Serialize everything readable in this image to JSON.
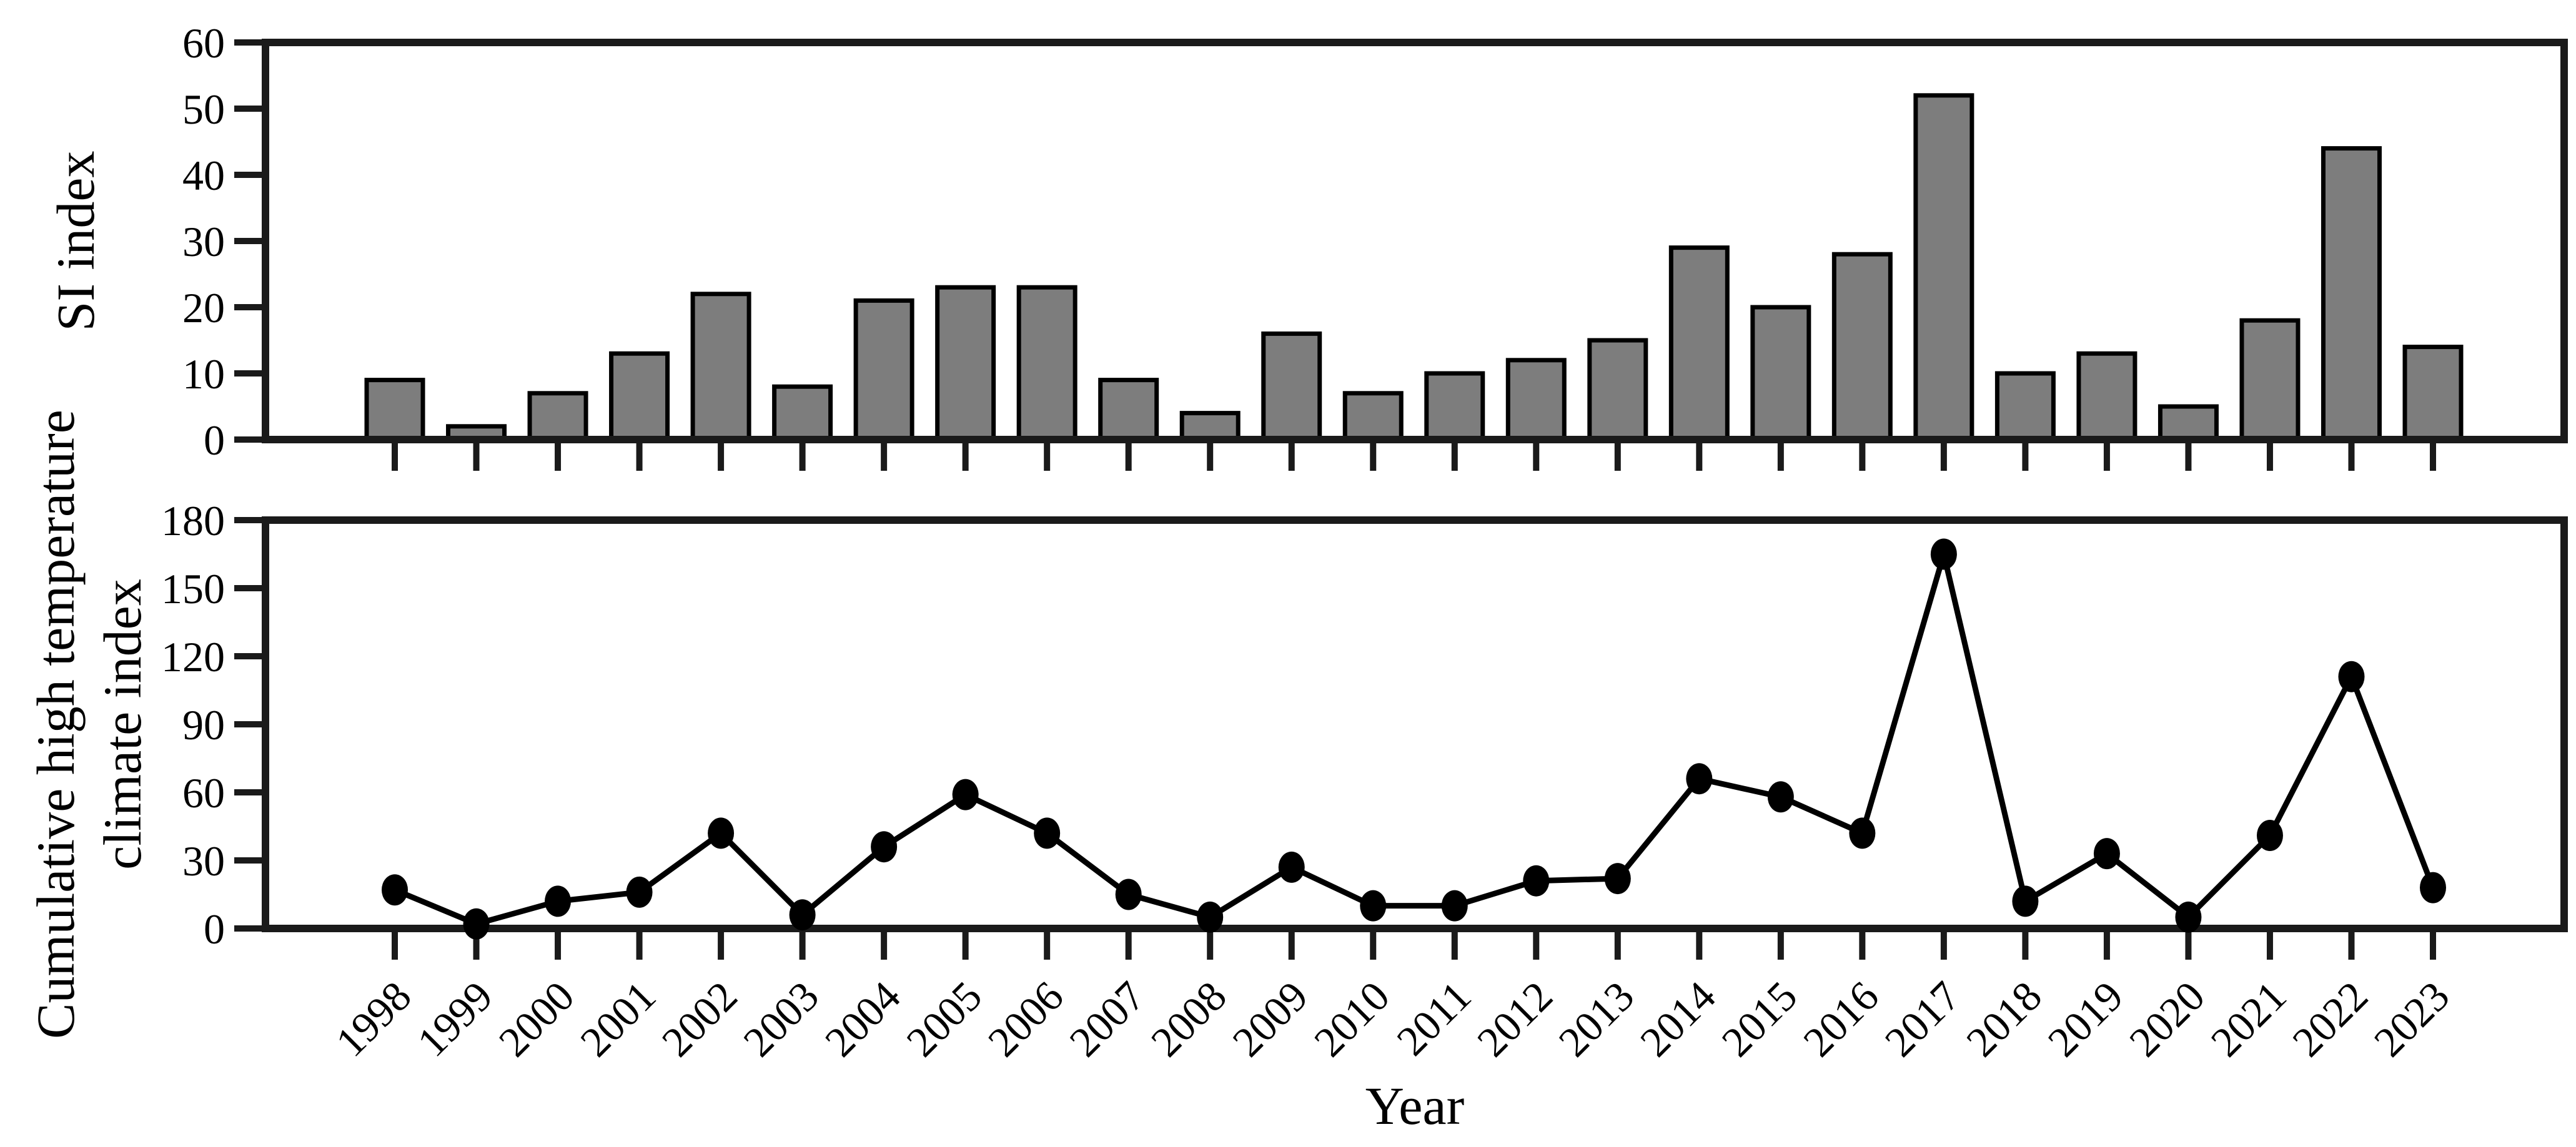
{
  "figure": {
    "background": "#ffffff",
    "axis_color": "#1a1a1a",
    "text_color": "#000000"
  },
  "chart_data": [
    {
      "type": "bar",
      "title": "",
      "ylabel": "SI index",
      "xlabel": "",
      "categories": [
        "1998",
        "1999",
        "2000",
        "2001",
        "2002",
        "2003",
        "2004",
        "2005",
        "2006",
        "2007",
        "2008",
        "2009",
        "2010",
        "2011",
        "2012",
        "2013",
        "2014",
        "2015",
        "2016",
        "2017",
        "2018",
        "2019",
        "2020",
        "2021",
        "2022",
        "2023"
      ],
      "values": [
        9,
        2,
        7,
        13,
        22,
        8,
        21,
        23,
        23,
        9,
        4,
        16,
        7,
        10,
        12,
        15,
        29,
        20,
        28,
        52,
        10,
        13,
        5,
        18,
        44,
        14
      ],
      "ylim": [
        0,
        60
      ],
      "yticks": [
        0,
        10,
        20,
        30,
        40,
        50,
        60
      ],
      "grid": false,
      "legend": "none",
      "bar_fill": "#7d7d7d",
      "bar_edge": "#000000"
    },
    {
      "type": "line",
      "title": "",
      "ylabel_lines": [
        "Cumulative high temperature",
        "climate index"
      ],
      "xlabel": "Year",
      "categories": [
        "1998",
        "1999",
        "2000",
        "2001",
        "2002",
        "2003",
        "2004",
        "2005",
        "2006",
        "2007",
        "2008",
        "2009",
        "2010",
        "2011",
        "2012",
        "2013",
        "2014",
        "2015",
        "2016",
        "2017",
        "2018",
        "2019",
        "2020",
        "2021",
        "2022",
        "2023"
      ],
      "values": [
        17,
        2,
        12,
        16,
        42,
        6,
        36,
        59,
        42,
        15,
        5,
        27,
        10,
        10,
        21,
        22,
        66,
        58,
        42,
        165,
        12,
        33,
        5,
        41,
        111,
        18
      ],
      "ylim": [
        0,
        180
      ],
      "yticks": [
        0,
        30,
        60,
        90,
        120,
        150,
        180
      ],
      "grid": false,
      "legend": "none",
      "line_color": "#000000",
      "marker": "circle",
      "marker_color": "#000000"
    }
  ]
}
